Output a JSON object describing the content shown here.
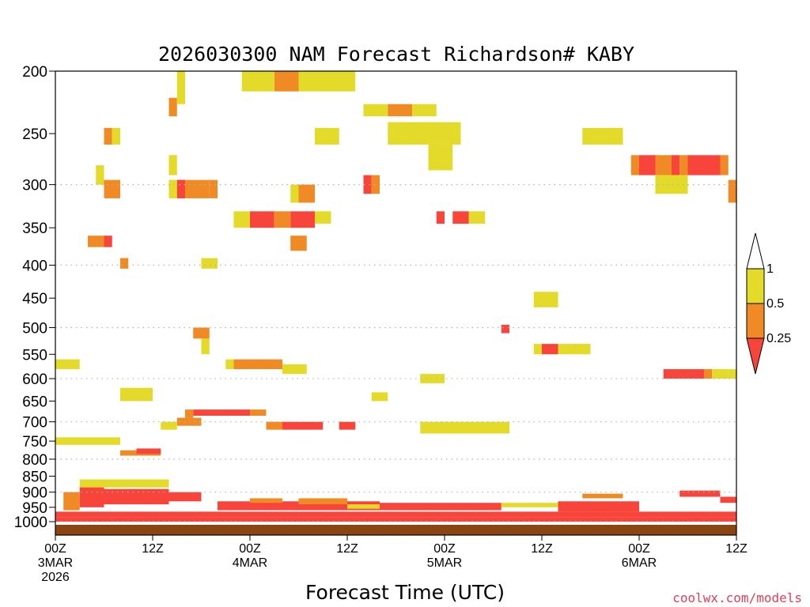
{
  "chart_data": {
    "type": "heatmap",
    "title": "2026030300 NAM Forecast Richardson# KABY",
    "xlabel": "Forecast Time (UTC)",
    "ylabel": "",
    "credit": "coolwx.com/models",
    "x_unit": "hours",
    "xlim": [
      0,
      84
    ],
    "x_ticks": [
      {
        "hour": 0,
        "lines": [
          "00Z",
          "3MAR",
          "2026"
        ]
      },
      {
        "hour": 12,
        "lines": [
          "12Z"
        ]
      },
      {
        "hour": 24,
        "lines": [
          "00Z",
          "4MAR"
        ]
      },
      {
        "hour": 36,
        "lines": [
          "12Z"
        ]
      },
      {
        "hour": 48,
        "lines": [
          "00Z",
          "5MAR"
        ]
      },
      {
        "hour": 60,
        "lines": [
          "12Z"
        ]
      },
      {
        "hour": 72,
        "lines": [
          "00Z",
          "6MAR"
        ]
      },
      {
        "hour": 84,
        "lines": [
          "12Z"
        ]
      }
    ],
    "y_unit": "hPa",
    "ylim": [
      1000,
      200
    ],
    "y_scale": "log",
    "y_ticks": [
      200,
      250,
      300,
      350,
      400,
      450,
      500,
      550,
      600,
      650,
      700,
      750,
      800,
      850,
      900,
      950,
      1000
    ],
    "legend": {
      "placement": "right",
      "levels": [
        {
          "label": "1",
          "value": 1.0
        },
        {
          "label": "0.5",
          "value": 0.5
        },
        {
          "label": "0.25",
          "value": 0.25
        }
      ],
      "bins": [
        {
          "name": "Ri >= 1",
          "color": "#ffffff"
        },
        {
          "name": "0.5 - 1",
          "color": "#e3da2a"
        },
        {
          "name": "0.25 - 0.5",
          "color": "#f08a24"
        },
        {
          "name": "< 0.25",
          "color": "#f7453c"
        }
      ]
    },
    "colors": {
      "yellow": "#e3da2a",
      "orange": "#f08a24",
      "red": "#f7453c",
      "ground": "#8b4513",
      "grid": "#b3b3b3",
      "frame": "#000000"
    },
    "cells": [
      {
        "t0": 3,
        "t1": 6,
        "p0": 880,
        "p1": 950,
        "bin": "red"
      },
      {
        "t0": 6,
        "t1": 14,
        "p0": 890,
        "p1": 940,
        "bin": "red"
      },
      {
        "t0": 14,
        "t1": 18,
        "p0": 900,
        "p1": 930,
        "bin": "red"
      },
      {
        "t0": 1,
        "t1": 3,
        "p0": 900,
        "p1": 960,
        "bin": "orange"
      },
      {
        "t0": 3,
        "t1": 14,
        "p0": 860,
        "p1": 885,
        "bin": "yellow"
      },
      {
        "t0": 0,
        "t1": 84,
        "p0": 965,
        "p1": 985,
        "bin": "red"
      },
      {
        "t0": 0,
        "t1": 84,
        "p0": 985,
        "p1": 1000,
        "bin": "red"
      },
      {
        "t0": 20,
        "t1": 40,
        "p0": 930,
        "p1": 960,
        "bin": "red"
      },
      {
        "t0": 40,
        "t1": 55,
        "p0": 935,
        "p1": 960,
        "bin": "red"
      },
      {
        "t0": 62,
        "t1": 72,
        "p0": 930,
        "p1": 965,
        "bin": "red"
      },
      {
        "t0": 77,
        "t1": 82,
        "p0": 895,
        "p1": 915,
        "bin": "red"
      },
      {
        "t0": 24,
        "t1": 28,
        "p0": 920,
        "p1": 935,
        "bin": "orange"
      },
      {
        "t0": 30,
        "t1": 36,
        "p0": 920,
        "p1": 940,
        "bin": "orange"
      },
      {
        "t0": 36,
        "t1": 40,
        "p0": 940,
        "p1": 955,
        "bin": "yellow"
      },
      {
        "t0": 55,
        "t1": 62,
        "p0": 935,
        "p1": 950,
        "bin": "yellow"
      },
      {
        "t0": 82,
        "t1": 84,
        "p0": 915,
        "p1": 935,
        "bin": "red"
      },
      {
        "t0": 65,
        "t1": 70,
        "p0": 905,
        "p1": 920,
        "bin": "orange"
      },
      {
        "t0": 8,
        "t1": 13,
        "p0": 775,
        "p1": 790,
        "bin": "orange"
      },
      {
        "t0": 10,
        "t1": 13,
        "p0": 770,
        "p1": 785,
        "bin": "red"
      },
      {
        "t0": 17,
        "t1": 24,
        "p0": 670,
        "p1": 685,
        "bin": "red"
      },
      {
        "t0": 16,
        "t1": 17,
        "p0": 670,
        "p1": 690,
        "bin": "orange"
      },
      {
        "t0": 15,
        "t1": 18,
        "p0": 690,
        "p1": 710,
        "bin": "orange"
      },
      {
        "t0": 13,
        "t1": 15,
        "p0": 700,
        "p1": 720,
        "bin": "yellow"
      },
      {
        "t0": 24,
        "t1": 26,
        "p0": 670,
        "p1": 685,
        "bin": "orange"
      },
      {
        "t0": 22,
        "t1": 28,
        "p0": 560,
        "p1": 580,
        "bin": "orange"
      },
      {
        "t0": 21,
        "t1": 22,
        "p0": 560,
        "p1": 580,
        "bin": "yellow"
      },
      {
        "t0": 28,
        "t1": 31,
        "p0": 570,
        "p1": 590,
        "bin": "yellow"
      },
      {
        "t0": 28,
        "t1": 33,
        "p0": 700,
        "p1": 720,
        "bin": "red"
      },
      {
        "t0": 26,
        "t1": 28,
        "p0": 700,
        "p1": 720,
        "bin": "orange"
      },
      {
        "t0": 35,
        "t1": 37,
        "p0": 700,
        "p1": 720,
        "bin": "red"
      },
      {
        "t0": 45,
        "t1": 56,
        "p0": 700,
        "p1": 730,
        "bin": "yellow"
      },
      {
        "t0": 0,
        "t1": 8,
        "p0": 740,
        "p1": 760,
        "bin": "yellow"
      },
      {
        "t0": 0,
        "t1": 3,
        "p0": 560,
        "p1": 580,
        "bin": "yellow"
      },
      {
        "t0": 8,
        "t1": 12,
        "p0": 620,
        "p1": 650,
        "bin": "yellow"
      },
      {
        "t0": 17,
        "t1": 19,
        "p0": 500,
        "p1": 520,
        "bin": "orange"
      },
      {
        "t0": 18,
        "t1": 19,
        "p0": 520,
        "p1": 550,
        "bin": "yellow"
      },
      {
        "t0": 30,
        "t1": 32,
        "p0": 300,
        "p1": 320,
        "bin": "orange"
      },
      {
        "t0": 29,
        "t1": 30,
        "p0": 300,
        "p1": 320,
        "bin": "yellow"
      },
      {
        "t0": 24,
        "t1": 27,
        "p0": 330,
        "p1": 350,
        "bin": "red"
      },
      {
        "t0": 22,
        "t1": 24,
        "p0": 330,
        "p1": 350,
        "bin": "yellow"
      },
      {
        "t0": 27,
        "t1": 29,
        "p0": 330,
        "p1": 350,
        "bin": "orange"
      },
      {
        "t0": 29,
        "t1": 32,
        "p0": 330,
        "p1": 350,
        "bin": "red"
      },
      {
        "t0": 32,
        "t1": 34,
        "p0": 330,
        "p1": 345,
        "bin": "yellow"
      },
      {
        "t0": 29,
        "t1": 31,
        "p0": 360,
        "p1": 380,
        "bin": "orange"
      },
      {
        "t0": 27,
        "t1": 30,
        "p0": 200,
        "p1": 215,
        "bin": "orange"
      },
      {
        "t0": 23,
        "t1": 27,
        "p0": 200,
        "p1": 215,
        "bin": "yellow"
      },
      {
        "t0": 30,
        "t1": 37,
        "p0": 200,
        "p1": 215,
        "bin": "yellow"
      },
      {
        "t0": 38,
        "t1": 41,
        "p0": 225,
        "p1": 235,
        "bin": "yellow"
      },
      {
        "t0": 41,
        "t1": 44,
        "p0": 225,
        "p1": 235,
        "bin": "orange"
      },
      {
        "t0": 44,
        "t1": 47,
        "p0": 225,
        "p1": 235,
        "bin": "yellow"
      },
      {
        "t0": 41,
        "t1": 50,
        "p0": 240,
        "p1": 260,
        "bin": "yellow"
      },
      {
        "t0": 46,
        "t1": 49,
        "p0": 260,
        "p1": 285,
        "bin": "yellow"
      },
      {
        "t0": 32,
        "t1": 35,
        "p0": 245,
        "p1": 260,
        "bin": "yellow"
      },
      {
        "t0": 65,
        "t1": 70,
        "p0": 245,
        "p1": 260,
        "bin": "yellow"
      },
      {
        "t0": 71,
        "t1": 72,
        "p0": 270,
        "p1": 290,
        "bin": "orange"
      },
      {
        "t0": 72,
        "t1": 74,
        "p0": 270,
        "p1": 290,
        "bin": "red"
      },
      {
        "t0": 74,
        "t1": 76,
        "p0": 270,
        "p1": 290,
        "bin": "orange"
      },
      {
        "t0": 76,
        "t1": 77,
        "p0": 270,
        "p1": 290,
        "bin": "red"
      },
      {
        "t0": 77,
        "t1": 78,
        "p0": 270,
        "p1": 290,
        "bin": "orange"
      },
      {
        "t0": 78,
        "t1": 82,
        "p0": 270,
        "p1": 290,
        "bin": "red"
      },
      {
        "t0": 82,
        "t1": 83,
        "p0": 270,
        "p1": 290,
        "bin": "orange"
      },
      {
        "t0": 74,
        "t1": 78,
        "p0": 290,
        "p1": 310,
        "bin": "yellow"
      },
      {
        "t0": 83,
        "t1": 84,
        "p0": 295,
        "p1": 320,
        "bin": "orange"
      },
      {
        "t0": 75,
        "t1": 80,
        "p0": 580,
        "p1": 600,
        "bin": "red"
      },
      {
        "t0": 80,
        "t1": 81,
        "p0": 580,
        "p1": 600,
        "bin": "orange"
      },
      {
        "t0": 81,
        "t1": 83,
        "p0": 580,
        "p1": 600,
        "bin": "yellow"
      },
      {
        "t0": 83,
        "t1": 84,
        "p0": 580,
        "p1": 600,
        "bin": "yellow"
      },
      {
        "t0": 60,
        "t1": 62,
        "p0": 530,
        "p1": 550,
        "bin": "red"
      },
      {
        "t0": 59,
        "t1": 60,
        "p0": 530,
        "p1": 550,
        "bin": "yellow"
      },
      {
        "t0": 62,
        "t1": 66,
        "p0": 530,
        "p1": 550,
        "bin": "yellow"
      },
      {
        "t0": 59,
        "t1": 62,
        "p0": 440,
        "p1": 465,
        "bin": "yellow"
      },
      {
        "t0": 38,
        "t1": 39,
        "p0": 290,
        "p1": 310,
        "bin": "red"
      },
      {
        "t0": 39,
        "t1": 40,
        "p0": 290,
        "p1": 310,
        "bin": "orange"
      },
      {
        "t0": 47,
        "t1": 48,
        "p0": 330,
        "p1": 345,
        "bin": "red"
      },
      {
        "t0": 49,
        "t1": 51,
        "p0": 330,
        "p1": 345,
        "bin": "red"
      },
      {
        "t0": 51,
        "t1": 53,
        "p0": 330,
        "p1": 345,
        "bin": "yellow"
      },
      {
        "t0": 6,
        "t1": 8,
        "p0": 295,
        "p1": 315,
        "bin": "orange"
      },
      {
        "t0": 5,
        "t1": 6,
        "p0": 280,
        "p1": 300,
        "bin": "yellow"
      },
      {
        "t0": 4,
        "t1": 6,
        "p0": 360,
        "p1": 375,
        "bin": "orange"
      },
      {
        "t0": 6,
        "t1": 7,
        "p0": 360,
        "p1": 375,
        "bin": "red"
      },
      {
        "t0": 8,
        "t1": 9,
        "p0": 390,
        "p1": 405,
        "bin": "orange"
      },
      {
        "t0": 15,
        "t1": 19,
        "p0": 295,
        "p1": 315,
        "bin": "orange"
      },
      {
        "t0": 15,
        "t1": 16,
        "p0": 295,
        "p1": 315,
        "bin": "red"
      },
      {
        "t0": 14,
        "t1": 15,
        "p0": 295,
        "p1": 315,
        "bin": "yellow"
      },
      {
        "t0": 19,
        "t1": 20,
        "p0": 295,
        "p1": 315,
        "bin": "orange"
      },
      {
        "t0": 14,
        "t1": 15,
        "p0": 220,
        "p1": 235,
        "bin": "orange"
      },
      {
        "t0": 15,
        "t1": 16,
        "p0": 200,
        "p1": 225,
        "bin": "yellow"
      },
      {
        "t0": 14,
        "t1": 15,
        "p0": 270,
        "p1": 290,
        "bin": "yellow"
      },
      {
        "t0": 18,
        "t1": 20,
        "p0": 390,
        "p1": 405,
        "bin": "yellow"
      },
      {
        "t0": 6,
        "t1": 7,
        "p0": 245,
        "p1": 260,
        "bin": "orange"
      },
      {
        "t0": 7,
        "t1": 8,
        "p0": 245,
        "p1": 260,
        "bin": "yellow"
      },
      {
        "t0": 55,
        "t1": 56,
        "p0": 495,
        "p1": 510,
        "bin": "red"
      },
      {
        "t0": 64,
        "t1": 66,
        "p0": 530,
        "p1": 545,
        "bin": "yellow"
      },
      {
        "t0": 45,
        "t1": 48,
        "p0": 590,
        "p1": 610,
        "bin": "yellow"
      },
      {
        "t0": 39,
        "t1": 41,
        "p0": 630,
        "p1": 650,
        "bin": "yellow"
      },
      {
        "t0": 0,
        "t1": 84,
        "p0": 1000,
        "p1": 1025,
        "bin": "ground"
      }
    ]
  }
}
